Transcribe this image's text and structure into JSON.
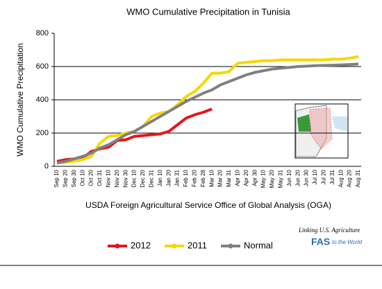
{
  "chart_data": {
    "type": "line",
    "title": "WMO Cumulative Precipitation in Tunisia",
    "y_label": "WMO Cumulative Precipitation",
    "x_label": "USDA Foreign Agricultural Service Office of Global Analysis (OGA)",
    "logo": {
      "tagline": "Linking U.S. Agriculture",
      "name": "FAS",
      "suffix": "to the World"
    },
    "categories": [
      "Sep 10",
      "Sep 20",
      "Sep 30",
      "Oct 10",
      "Oct 20",
      "Oct 31",
      "Nov 10",
      "Nov 20",
      "Nov 30",
      "Dec 10",
      "Dec 20",
      "Dec 31",
      "Jan 10",
      "Jan 20",
      "Jan 31",
      "Feb 10",
      "Feb 20",
      "Feb 28",
      "Mar 10",
      "Mar 20",
      "Mar 31",
      "Apr 10",
      "Apr 20",
      "Apr 30",
      "May 10",
      "May 20",
      "May 31",
      "Jun 10",
      "Jun 20",
      "Jun 30",
      "Jul 10",
      "Jul 20",
      "Jul 31",
      "Aug 10",
      "Aug 20",
      "Aug 31"
    ],
    "series": [
      {
        "name": "2012",
        "color": "#e8141c",
        "values": [
          30,
          40,
          45,
          50,
          90,
          105,
          115,
          155,
          160,
          180,
          185,
          190,
          195,
          210,
          250,
          290,
          310,
          325,
          345,
          null,
          null,
          null,
          null,
          null,
          null,
          null,
          null,
          null,
          null,
          null,
          null,
          null,
          null,
          null,
          null,
          null
        ]
      },
      {
        "name": "2011",
        "color": "#f5d800",
        "values": [
          20,
          25,
          30,
          40,
          60,
          140,
          180,
          185,
          200,
          210,
          240,
          300,
          320,
          330,
          370,
          420,
          450,
          500,
          560,
          560,
          570,
          620,
          625,
          630,
          635,
          635,
          640,
          640,
          640,
          640,
          640,
          640,
          645,
          645,
          650,
          660
        ]
      },
      {
        "name": "Normal",
        "color": "#808080",
        "values": [
          20,
          30,
          45,
          60,
          80,
          110,
          130,
          160,
          190,
          210,
          240,
          270,
          300,
          330,
          360,
          390,
          415,
          440,
          460,
          490,
          510,
          530,
          550,
          565,
          575,
          585,
          590,
          595,
          600,
          602,
          605,
          607,
          608,
          610,
          612,
          615
        ]
      }
    ],
    "ylim": [
      0,
      800
    ],
    "yticks": [
      0,
      200,
      400,
      600,
      800
    ],
    "grid": true
  }
}
